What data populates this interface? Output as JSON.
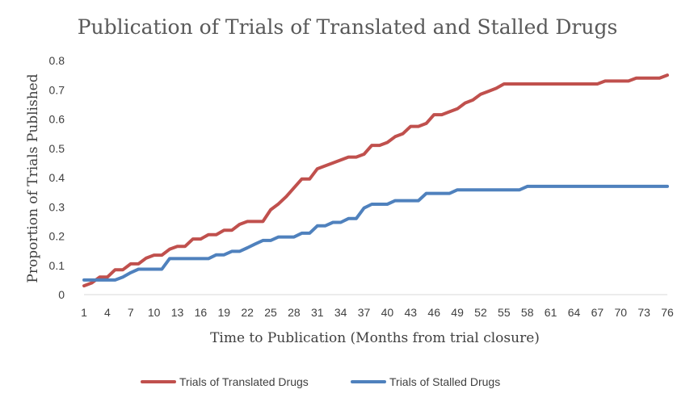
{
  "chart_data": {
    "type": "line",
    "title": "Publication of Trials of Translated and Stalled Drugs",
    "xlabel": "Time to Publication (Months from trial closure)",
    "ylabel": "Proportion of Trials Published",
    "x_ticks": [
      "1",
      "4",
      "7",
      "10",
      "13",
      "16",
      "19",
      "22",
      "25",
      "28",
      "31",
      "34",
      "37",
      "40",
      "43",
      "46",
      "49",
      "52",
      "55",
      "58",
      "61",
      "64",
      "67",
      "70",
      "73",
      "76"
    ],
    "y_ticks": [
      "0",
      "0.1",
      "0.2",
      "0.3",
      "0.4",
      "0.5",
      "0.6",
      "0.7",
      "0.8"
    ],
    "xlim": [
      1,
      76
    ],
    "ylim": [
      0,
      0.8
    ],
    "grid": false,
    "legend_position": "bottom",
    "series": [
      {
        "name": "Trials of Translated Drugs",
        "color": "#c0504d",
        "x": [
          1,
          2,
          3,
          4,
          5,
          6,
          7,
          8,
          9,
          10,
          11,
          12,
          13,
          14,
          15,
          16,
          17,
          18,
          19,
          20,
          21,
          22,
          23,
          24,
          25,
          26,
          27,
          28,
          29,
          30,
          31,
          32,
          33,
          34,
          35,
          36,
          37,
          38,
          39,
          40,
          41,
          42,
          43,
          44,
          45,
          46,
          47,
          48,
          49,
          50,
          51,
          52,
          53,
          54,
          55,
          56,
          57,
          58,
          59,
          60,
          61,
          62,
          63,
          64,
          65,
          66,
          67,
          68,
          69,
          70,
          71,
          72,
          73,
          74,
          75,
          76
        ],
        "values": [
          0.03,
          0.04,
          0.06,
          0.06,
          0.085,
          0.085,
          0.105,
          0.105,
          0.125,
          0.135,
          0.135,
          0.155,
          0.165,
          0.165,
          0.19,
          0.19,
          0.205,
          0.205,
          0.22,
          0.22,
          0.24,
          0.25,
          0.25,
          0.25,
          0.29,
          0.31,
          0.335,
          0.365,
          0.395,
          0.395,
          0.43,
          0.44,
          0.45,
          0.46,
          0.47,
          0.47,
          0.48,
          0.51,
          0.51,
          0.52,
          0.54,
          0.55,
          0.575,
          0.575,
          0.585,
          0.615,
          0.615,
          0.625,
          0.635,
          0.655,
          0.665,
          0.685,
          0.695,
          0.705,
          0.72,
          0.72,
          0.72,
          0.72,
          0.72,
          0.72,
          0.72,
          0.72,
          0.72,
          0.72,
          0.72,
          0.72,
          0.72,
          0.73,
          0.73,
          0.73,
          0.73,
          0.74,
          0.74,
          0.74,
          0.74,
          0.75
        ]
      },
      {
        "name": "Trials of Stalled Drugs",
        "color": "#4f81bd",
        "x": [
          1,
          2,
          3,
          4,
          5,
          6,
          7,
          8,
          9,
          10,
          11,
          12,
          13,
          14,
          15,
          16,
          17,
          18,
          19,
          20,
          21,
          22,
          23,
          24,
          25,
          26,
          27,
          28,
          29,
          30,
          31,
          32,
          33,
          34,
          35,
          36,
          37,
          38,
          39,
          40,
          41,
          42,
          43,
          44,
          45,
          46,
          47,
          48,
          49,
          50,
          51,
          52,
          53,
          54,
          55,
          56,
          57,
          58,
          59,
          60,
          61,
          62,
          63,
          64,
          65,
          66,
          67,
          68,
          69,
          70,
          71,
          72,
          73,
          74,
          75,
          76
        ],
        "values": [
          0.05,
          0.05,
          0.05,
          0.05,
          0.05,
          0.06,
          0.075,
          0.087,
          0.087,
          0.087,
          0.087,
          0.123,
          0.123,
          0.123,
          0.123,
          0.123,
          0.123,
          0.136,
          0.136,
          0.148,
          0.148,
          0.16,
          0.173,
          0.185,
          0.185,
          0.197,
          0.197,
          0.197,
          0.21,
          0.21,
          0.235,
          0.235,
          0.247,
          0.247,
          0.26,
          0.26,
          0.296,
          0.309,
          0.309,
          0.309,
          0.321,
          0.321,
          0.321,
          0.321,
          0.346,
          0.346,
          0.346,
          0.346,
          0.358,
          0.358,
          0.358,
          0.358,
          0.358,
          0.358,
          0.358,
          0.358,
          0.358,
          0.37,
          0.37,
          0.37,
          0.37,
          0.37,
          0.37,
          0.37,
          0.37,
          0.37,
          0.37,
          0.37,
          0.37,
          0.37,
          0.37,
          0.37,
          0.37,
          0.37,
          0.37,
          0.37
        ]
      }
    ]
  }
}
